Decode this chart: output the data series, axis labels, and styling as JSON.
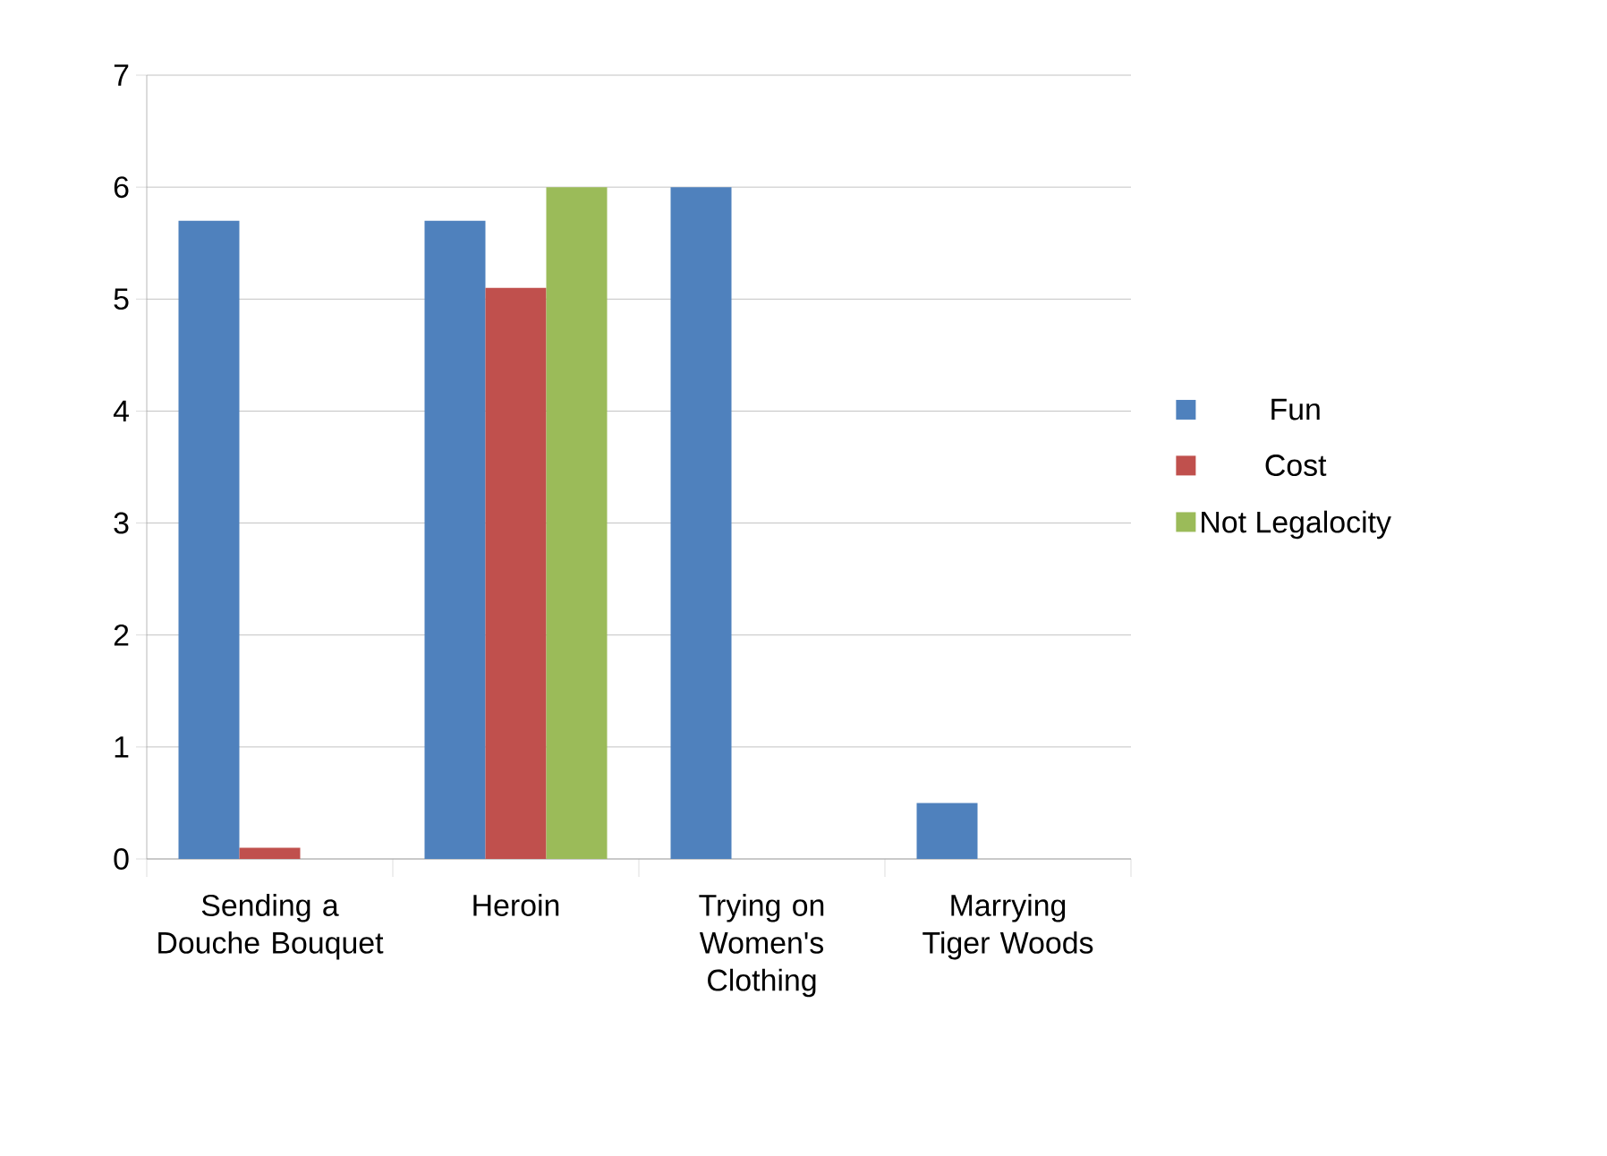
{
  "chart_data": {
    "type": "bar",
    "categories": [
      "Sending a Douche Bouquet",
      "Heroin",
      "Trying on Women's Clothing",
      "Marrying Tiger Woods"
    ],
    "series": [
      {
        "name": "Fun",
        "color": "#4f81bd",
        "values": [
          5.7,
          5.7,
          6,
          0.5
        ]
      },
      {
        "name": "Cost",
        "color": "#c0504d",
        "values": [
          0.1,
          5.1,
          0,
          0
        ]
      },
      {
        "name": "Not Legalocity",
        "color": "#9bbb59",
        "values": [
          0,
          6,
          0,
          0
        ]
      }
    ],
    "ylim": [
      0,
      7
    ],
    "yticks": [
      0,
      1,
      2,
      3,
      4,
      5,
      6,
      7
    ],
    "grid": "y",
    "legend": "right"
  }
}
